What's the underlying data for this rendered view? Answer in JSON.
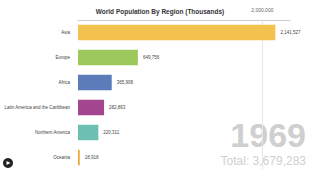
{
  "chart_data": {
    "type": "bar",
    "title": "World Population By Region (Thousands)",
    "orientation": "horizontal",
    "categories": [
      "Asia",
      "Europe",
      "Africa",
      "Latin America and the Caribbean",
      "Northern America",
      "Oceania"
    ],
    "values": [
      2141527,
      649756,
      365908,
      282863,
      220311,
      18918
    ],
    "value_labels": [
      "2,141,527",
      "649,756",
      "365,908",
      "282,863",
      "220,311",
      "18,918"
    ],
    "colors": [
      "#f2c14e",
      "#9dc85c",
      "#5b7cb8",
      "#a4468f",
      "#6dbfb2",
      "#f0a535"
    ],
    "xlim": [
      0,
      2300000
    ],
    "xticks": [
      {
        "value": 2000000,
        "label": "2,000,000"
      }
    ],
    "data_labels": true,
    "grid": true,
    "annotations": [
      "1969",
      "Total: 3,679,283"
    ]
  }
}
